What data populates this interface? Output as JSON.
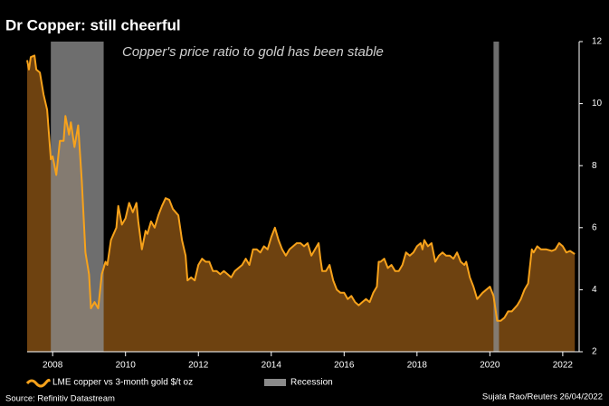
{
  "chart_data": {
    "type": "area",
    "title": "Dr Copper: still cheerful",
    "subtitle": "Copper's price ratio to gold has been stable",
    "source": "Source: Refinitiv Datastream",
    "credit": "Sujata Rao/Reuters 26/04/2022",
    "xlim": [
      2007.3,
      2022.45
    ],
    "xticks": [
      2008,
      2010,
      2012,
      2014,
      2016,
      2018,
      2020,
      2022
    ],
    "ylim": [
      2,
      12
    ],
    "yticks": [
      2,
      4,
      6,
      8,
      10,
      12
    ],
    "series": [
      {
        "name": "LME copper vs 3-month gold $/t oz",
        "color": "#f7a21b",
        "fill": "#6e4210",
        "x": [
          2007.3,
          2007.35,
          2007.4,
          2007.5,
          2007.55,
          2007.65,
          2007.75,
          2007.85,
          2007.95,
          2008.0,
          2008.1,
          2008.2,
          2008.3,
          2008.35,
          2008.45,
          2008.5,
          2008.6,
          2008.7,
          2008.8,
          2008.9,
          2009.0,
          2009.05,
          2009.15,
          2009.25,
          2009.35,
          2009.45,
          2009.5,
          2009.6,
          2009.75,
          2009.8,
          2009.9,
          2010.0,
          2010.1,
          2010.2,
          2010.3,
          2010.35,
          2010.45,
          2010.55,
          2010.6,
          2010.7,
          2010.8,
          2010.9,
          2011.0,
          2011.1,
          2011.2,
          2011.3,
          2011.45,
          2011.55,
          2011.65,
          2011.7,
          2011.8,
          2011.9,
          2012.0,
          2012.1,
          2012.2,
          2012.3,
          2012.4,
          2012.5,
          2012.6,
          2012.7,
          2012.8,
          2012.9,
          2013.0,
          2013.2,
          2013.3,
          2013.4,
          2013.5,
          2013.6,
          2013.7,
          2013.8,
          2013.9,
          2014.0,
          2014.1,
          2014.2,
          2014.3,
          2014.4,
          2014.5,
          2014.6,
          2014.7,
          2014.8,
          2014.9,
          2015.0,
          2015.1,
          2015.2,
          2015.3,
          2015.35,
          2015.4,
          2015.5,
          2015.6,
          2015.7,
          2015.8,
          2015.9,
          2016.0,
          2016.1,
          2016.2,
          2016.3,
          2016.4,
          2016.5,
          2016.6,
          2016.7,
          2016.8,
          2016.9,
          2016.95,
          2017.0,
          2017.1,
          2017.2,
          2017.3,
          2017.4,
          2017.5,
          2017.6,
          2017.7,
          2017.8,
          2017.9,
          2018.0,
          2018.1,
          2018.15,
          2018.2,
          2018.3,
          2018.4,
          2018.5,
          2018.6,
          2018.7,
          2018.8,
          2018.9,
          2019.0,
          2019.1,
          2019.2,
          2019.3,
          2019.35,
          2019.45,
          2019.55,
          2019.65,
          2019.8,
          2020.0,
          2020.1,
          2020.2,
          2020.3,
          2020.4,
          2020.5,
          2020.6,
          2020.75,
          2020.85,
          2020.95,
          2021.05,
          2021.15,
          2021.2,
          2021.3,
          2021.4,
          2021.55,
          2021.7,
          2021.8,
          2021.9,
          2022.0,
          2022.1,
          2022.2,
          2022.33
        ],
        "values": [
          11.4,
          11.1,
          11.5,
          11.55,
          11.1,
          11.0,
          10.3,
          9.8,
          8.2,
          8.3,
          7.7,
          8.8,
          8.8,
          9.6,
          9.0,
          9.4,
          8.6,
          9.3,
          7.5,
          5.2,
          4.5,
          3.4,
          3.6,
          3.4,
          4.5,
          4.9,
          4.8,
          5.6,
          6.0,
          6.7,
          6.1,
          6.3,
          6.8,
          6.5,
          6.8,
          6.2,
          5.3,
          5.9,
          5.8,
          6.2,
          6.0,
          6.4,
          6.7,
          6.95,
          6.9,
          6.6,
          6.4,
          5.6,
          5.1,
          4.3,
          4.4,
          4.3,
          4.8,
          5.0,
          4.9,
          4.9,
          4.6,
          4.6,
          4.5,
          4.6,
          4.5,
          4.4,
          4.6,
          4.8,
          5.0,
          4.8,
          5.3,
          5.3,
          5.2,
          5.4,
          5.3,
          5.7,
          6.0,
          5.6,
          5.3,
          5.1,
          5.3,
          5.4,
          5.5,
          5.5,
          5.4,
          5.5,
          5.1,
          5.3,
          5.5,
          5.0,
          4.6,
          4.6,
          4.8,
          4.3,
          4.0,
          3.9,
          3.9,
          3.7,
          3.8,
          3.6,
          3.5,
          3.6,
          3.7,
          3.6,
          3.9,
          4.1,
          4.9,
          4.9,
          5.0,
          4.7,
          4.8,
          4.6,
          4.6,
          4.8,
          5.2,
          5.1,
          5.2,
          5.4,
          5.5,
          5.3,
          5.6,
          5.4,
          5.5,
          4.9,
          5.1,
          5.2,
          5.1,
          5.1,
          5.0,
          5.2,
          4.9,
          4.8,
          4.9,
          4.4,
          4.1,
          3.7,
          3.9,
          4.1,
          3.8,
          3.0,
          3.0,
          3.1,
          3.3,
          3.3,
          3.5,
          3.7,
          4.0,
          4.2,
          5.3,
          5.2,
          5.4,
          5.3,
          5.3,
          5.25,
          5.3,
          5.5,
          5.4,
          5.2,
          5.25,
          5.15
        ]
      }
    ],
    "recession": {
      "name": "Recession",
      "color": "#8a8a8a",
      "periods": [
        [
          2007.95,
          2009.4
        ],
        [
          2020.1,
          2020.25
        ]
      ]
    }
  }
}
